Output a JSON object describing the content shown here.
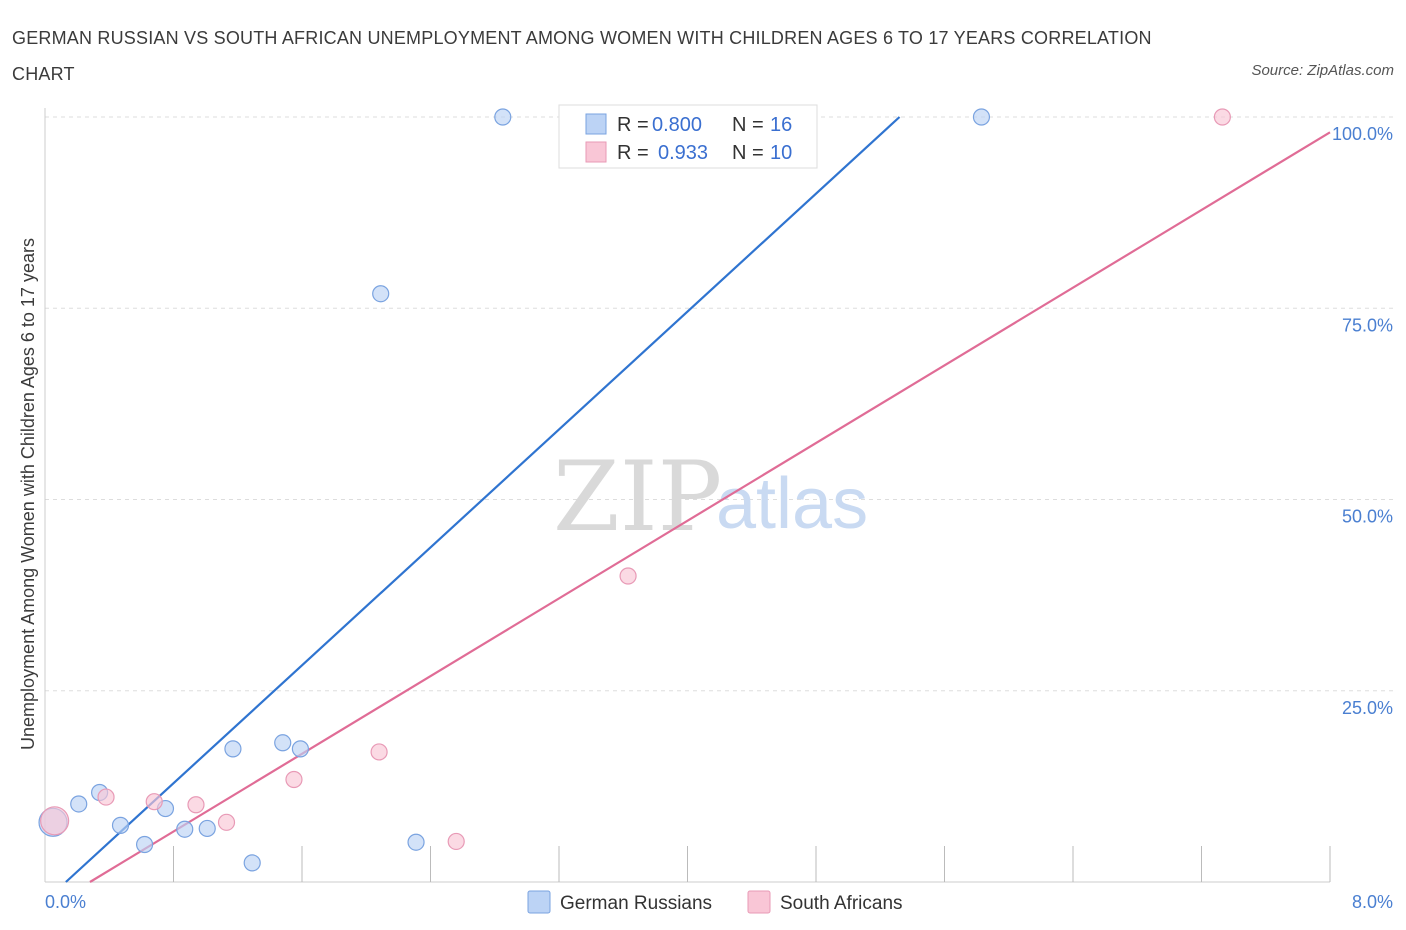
{
  "title": "GERMAN RUSSIAN VS SOUTH AFRICAN UNEMPLOYMENT AMONG WOMEN WITH CHILDREN AGES 6 TO 17 YEARS CORRELATION CHART",
  "source": "Source: ZipAtlas.com",
  "watermark": {
    "zip": "ZIP",
    "atlas": "atlas"
  },
  "colors": {
    "blue": "#4a7fd1",
    "blue_fill": "#bcd3f5",
    "blue_line": "#2f74d0",
    "pink": "#e07aa0",
    "pink_fill": "#f9c6d6",
    "pink_line": "#e06c96",
    "grid": "#dddddd"
  },
  "legend": {
    "rows": [
      {
        "r_label": "R =",
        "r_value": "0.800",
        "n_label": "N =",
        "n_value": "16"
      },
      {
        "r_label": "R =",
        "r_value": "0.933",
        "n_label": "N =",
        "n_value": "10"
      }
    ]
  },
  "chart_data": {
    "type": "scatter",
    "title": "GERMAN RUSSIAN VS SOUTH AFRICAN UNEMPLOYMENT AMONG WOMEN WITH CHILDREN AGES 6 TO 17 YEARS CORRELATION CHART",
    "xlabel": "",
    "ylabel": "Unemployment Among Women with Children Ages 6 to 17 years",
    "xlim": [
      0,
      8
    ],
    "ylim": [
      0,
      100
    ],
    "x_tick_labels": [
      "0.0%",
      "8.0%"
    ],
    "y_ticks": [
      25,
      50,
      75,
      100
    ],
    "y_tick_labels": [
      "25.0%",
      "50.0%",
      "75.0%",
      "100.0%"
    ],
    "series": [
      {
        "name": "German Russians",
        "color": "#4a7fd1",
        "points": [
          {
            "x": 0.05,
            "y": 7.8,
            "large": true
          },
          {
            "x": 0.21,
            "y": 10.2
          },
          {
            "x": 0.34,
            "y": 11.7
          },
          {
            "x": 0.47,
            "y": 7.4
          },
          {
            "x": 0.62,
            "y": 4.9
          },
          {
            "x": 0.75,
            "y": 9.6
          },
          {
            "x": 0.87,
            "y": 6.9
          },
          {
            "x": 1.01,
            "y": 7.0
          },
          {
            "x": 1.17,
            "y": 17.4
          },
          {
            "x": 1.29,
            "y": 2.5
          },
          {
            "x": 1.48,
            "y": 18.2
          },
          {
            "x": 1.59,
            "y": 17.4
          },
          {
            "x": 2.09,
            "y": 76.9
          },
          {
            "x": 2.31,
            "y": 5.2
          },
          {
            "x": 2.85,
            "y": 100.0
          },
          {
            "x": 5.83,
            "y": 100.0
          }
        ],
        "trend": {
          "x0": 0.13,
          "y0": 0.0,
          "x1": 5.32,
          "y1": 100.0
        }
      },
      {
        "name": "South Africans",
        "color": "#e07aa0",
        "points": [
          {
            "x": 0.06,
            "y": 8.0,
            "large": true
          },
          {
            "x": 0.38,
            "y": 11.1
          },
          {
            "x": 0.68,
            "y": 10.5
          },
          {
            "x": 0.94,
            "y": 10.1
          },
          {
            "x": 1.13,
            "y": 7.8
          },
          {
            "x": 1.55,
            "y": 13.4
          },
          {
            "x": 2.08,
            "y": 17.0
          },
          {
            "x": 2.56,
            "y": 5.3
          },
          {
            "x": 3.63,
            "y": 40.0
          },
          {
            "x": 7.33,
            "y": 100.0
          }
        ],
        "trend": {
          "x0": 0.28,
          "y0": 0.0,
          "x1": 8.0,
          "y1": 98.0
        }
      }
    ]
  }
}
